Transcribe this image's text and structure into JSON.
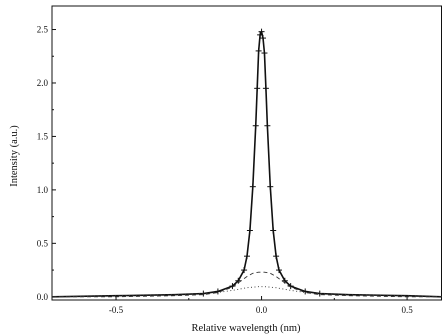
{
  "chart_data": {
    "type": "line",
    "xlabel": "Relative wavelength (nm)",
    "ylabel": "Intensity (a.u.)",
    "xlim": [
      -0.72,
      0.62
    ],
    "ylim": [
      -0.03,
      2.72
    ],
    "x_ticks": [
      -0.5,
      0.0,
      0.5
    ],
    "x_tick_labels": [
      "-0.5",
      "0.0",
      "0.5"
    ],
    "y_ticks": [
      0.0,
      0.5,
      1.0,
      1.5,
      2.0,
      2.5
    ],
    "y_tick_labels": [
      "0.0",
      "0.5",
      "1.0",
      "1.5",
      "2.0",
      "2.5"
    ],
    "grid": false,
    "series": [
      {
        "style": "solid-with-plus-markers",
        "color": "#111111",
        "x": [
          -0.72,
          -0.5,
          -0.3,
          -0.2,
          -0.15,
          -0.1,
          -0.08,
          -0.06,
          -0.05,
          -0.04,
          -0.03,
          -0.02,
          -0.015,
          -0.01,
          -0.005,
          0.0,
          0.005,
          0.01,
          0.015,
          0.02,
          0.03,
          0.04,
          0.05,
          0.06,
          0.08,
          0.1,
          0.15,
          0.2,
          0.3,
          0.5,
          0.62
        ],
        "y": [
          0.0,
          0.01,
          0.02,
          0.03,
          0.05,
          0.1,
          0.15,
          0.25,
          0.38,
          0.62,
          1.03,
          1.6,
          1.95,
          2.3,
          2.45,
          2.48,
          2.42,
          2.28,
          1.95,
          1.6,
          1.03,
          0.62,
          0.38,
          0.25,
          0.15,
          0.1,
          0.05,
          0.03,
          0.02,
          0.01,
          0.0
        ]
      },
      {
        "style": "dashed",
        "color": "#333333",
        "x": [
          -0.72,
          -0.5,
          -0.3,
          -0.2,
          -0.15,
          -0.1,
          -0.07,
          -0.05,
          -0.03,
          -0.01,
          0.0,
          0.01,
          0.03,
          0.05,
          0.07,
          0.1,
          0.15,
          0.2,
          0.3,
          0.5,
          0.62
        ],
        "y": [
          0.0,
          0.0,
          0.01,
          0.02,
          0.04,
          0.09,
          0.15,
          0.19,
          0.22,
          0.23,
          0.23,
          0.23,
          0.22,
          0.19,
          0.15,
          0.09,
          0.04,
          0.02,
          0.01,
          0.0,
          0.0
        ]
      },
      {
        "style": "dotted",
        "color": "#333333",
        "x": [
          -0.72,
          -0.5,
          -0.3,
          -0.2,
          -0.15,
          -0.1,
          -0.07,
          -0.05,
          -0.03,
          -0.01,
          0.0,
          0.01,
          0.03,
          0.05,
          0.07,
          0.1,
          0.15,
          0.2,
          0.3,
          0.5,
          0.62
        ],
        "y": [
          0.0,
          0.01,
          0.02,
          0.03,
          0.04,
          0.06,
          0.075,
          0.085,
          0.09,
          0.095,
          0.095,
          0.095,
          0.09,
          0.085,
          0.075,
          0.06,
          0.04,
          0.03,
          0.02,
          0.01,
          0.0
        ]
      }
    ]
  }
}
